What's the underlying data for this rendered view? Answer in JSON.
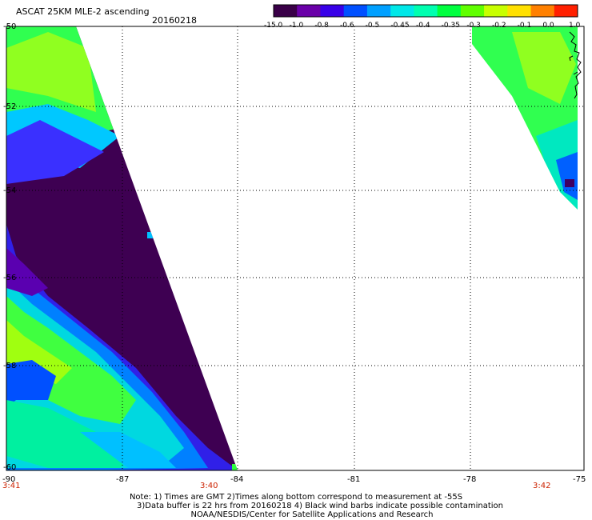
{
  "title": "ASCAT 25KM MLE-2 ascending",
  "date": "20160218",
  "colorbar": {
    "labels": [
      "-15.0",
      "-1.0",
      "-0.8",
      "-0.6",
      "-0.5",
      "-0.45",
      "-0.4",
      "-0.35",
      "-0.3",
      "-0.2",
      "-0.1",
      "0.0",
      "1.0"
    ],
    "colors": [
      "#3a0048",
      "#6a00a8",
      "#3800e8",
      "#0050ff",
      "#00a0ff",
      "#00e8e8",
      "#00ffb0",
      "#00ff40",
      "#60ff00",
      "#c8ff00",
      "#ffe000",
      "#ff8000",
      "#ff2000"
    ]
  },
  "axes": {
    "y_ticks": [
      "-50",
      "-52",
      "-54",
      "-56",
      "-58",
      "-60"
    ],
    "x_ticks": [
      "-90",
      "-87",
      "-84",
      "-81",
      "-78",
      "-75"
    ],
    "times": [
      "3:41",
      "3:40",
      "3:42"
    ]
  },
  "notes": [
    "Note: 1) Times are GMT 2)Times along bottom correspond to measurement at -55S",
    "3)Data buffer is 22 hrs from 20160218 4) Black wind barbs indicate possible contamination",
    "NOAA/NESDIS/Center for Satellite Applications and Research"
  ]
}
